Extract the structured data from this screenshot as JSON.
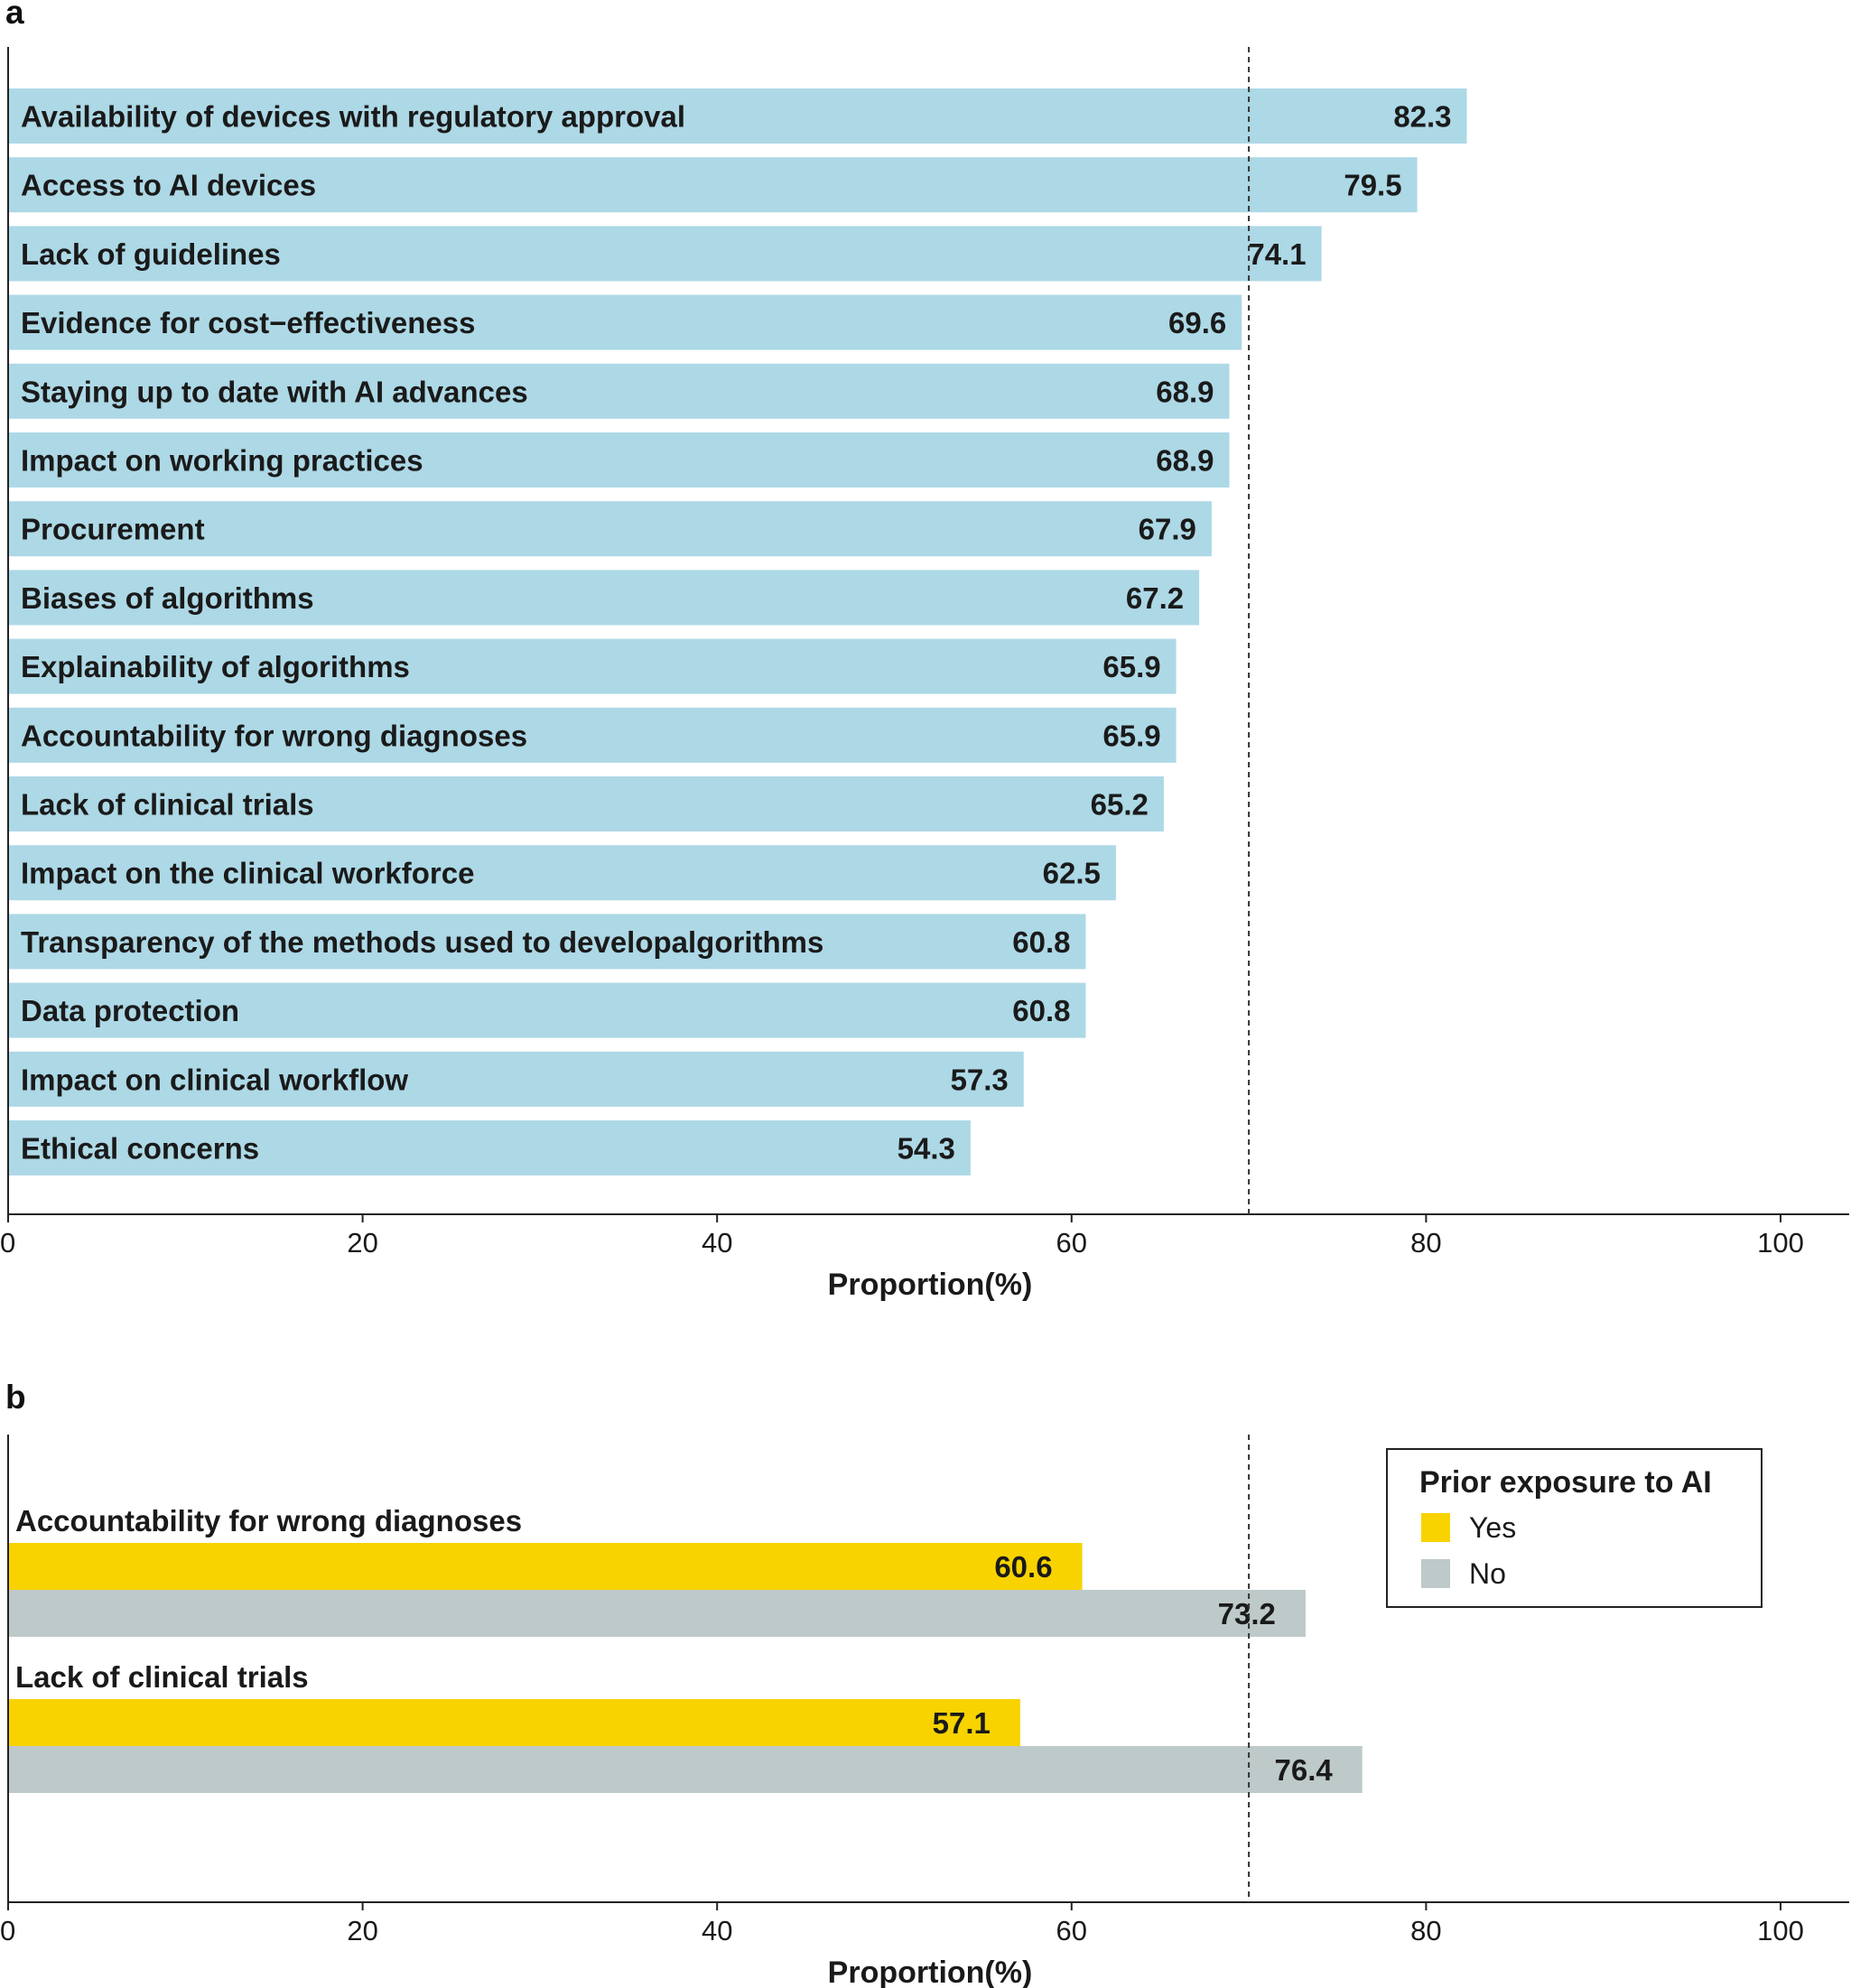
{
  "chart_data": [
    {
      "panel": "a",
      "type": "bar",
      "orientation": "horizontal",
      "categories": [
        "Availability of devices with regulatory approval",
        "Access to AI devices",
        "Lack of guidelines",
        "Evidence for cost−effectiveness",
        "Staying up to date with AI advances",
        "Impact on working practices",
        "Procurement",
        "Biases of algorithms",
        "Explainability of algorithms",
        "Accountability for wrong diagnoses",
        "Lack of clinical trials",
        "Impact on the clinical workforce",
        "Transparency of the methods used to developalgorithms",
        "Data protection",
        "Impact on clinical workflow",
        "Ethical concerns"
      ],
      "values": [
        82.3,
        79.5,
        74.1,
        69.6,
        68.9,
        68.9,
        67.9,
        67.2,
        65.9,
        65.9,
        65.2,
        62.5,
        60.8,
        60.8,
        57.3,
        54.3
      ],
      "value_labels": [
        "82.3",
        "79.5",
        "74.1",
        "69.6",
        "68.9",
        "68.9",
        "67.9",
        "67.2",
        "65.9",
        "65.9",
        "65.2",
        "62.5",
        "60.8",
        "60.8",
        "57.3",
        "54.3"
      ],
      "xlabel": "Proportion(%)",
      "xlim": [
        0,
        100
      ],
      "xticks": [
        0,
        20,
        40,
        60,
        80,
        100
      ],
      "xtick_labels": [
        "0",
        "20",
        "40",
        "60",
        "80",
        "100"
      ],
      "reference_line": 70,
      "bar_color": "#add8e6"
    },
    {
      "panel": "b",
      "type": "bar",
      "orientation": "horizontal",
      "categories": [
        "Accountability for wrong diagnoses",
        "Lack of clinical trials"
      ],
      "series": [
        {
          "name": "Yes",
          "values": [
            60.6,
            57.1
          ],
          "value_labels": [
            "60.6",
            "57.1"
          ],
          "color": "#f8d300"
        },
        {
          "name": "No",
          "values": [
            73.2,
            76.4
          ],
          "value_labels": [
            "73.2",
            "76.4"
          ],
          "color": "#bec9c9"
        }
      ],
      "legend_title": "Prior exposure to AI",
      "legend_position": "top-right",
      "xlabel": "Proportion(%)",
      "xlim": [
        0,
        100
      ],
      "xticks": [
        0,
        20,
        40,
        60,
        80,
        100
      ],
      "xtick_labels": [
        "0",
        "20",
        "40",
        "60",
        "80",
        "100"
      ],
      "reference_line": 70
    }
  ],
  "panel_letters": {
    "a": "a",
    "b": "b"
  }
}
